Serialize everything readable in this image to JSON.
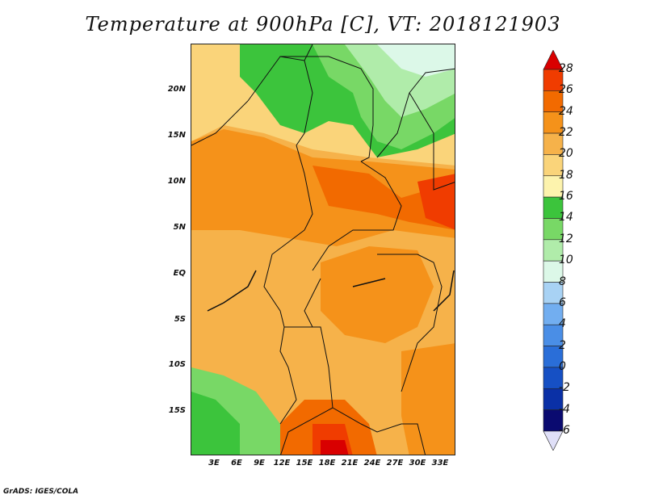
{
  "title": "Temperature at 900hPa [C], VT: 2018121903",
  "footer": "GrADS: IGES/COLA",
  "map": {
    "region": "Central Africa",
    "variable": "Temperature at 900hPa",
    "units": "C",
    "valid_time": "2018121903",
    "lat_labels": [
      "20N",
      "15N",
      "10N",
      "5N",
      "EQ",
      "5S",
      "10S",
      "15S"
    ],
    "lon_labels": [
      "3E",
      "6E",
      "9E",
      "12E",
      "15E",
      "18E",
      "21E",
      "24E",
      "27E",
      "30E",
      "33E"
    ]
  },
  "colorbar": {
    "labels": [
      "28",
      "26",
      "24",
      "22",
      "20",
      "18",
      "16",
      "14",
      "12",
      "10",
      "8",
      "6",
      "4",
      "2",
      "0",
      "-2",
      "-4",
      "-6"
    ],
    "colors": [
      "#d90000",
      "#f03c00",
      "#f26a00",
      "#f5921a",
      "#f6b24a",
      "#fad47a",
      "#fdf3ad",
      "#3cc43c",
      "#78d866",
      "#b0ecaa",
      "#dcf8e8",
      "#a8d2f4",
      "#72aef0",
      "#4a8ee6",
      "#2a6ed8",
      "#1650c4",
      "#0a30a6",
      "#0a0a70",
      "#e0e0f8"
    ]
  }
}
